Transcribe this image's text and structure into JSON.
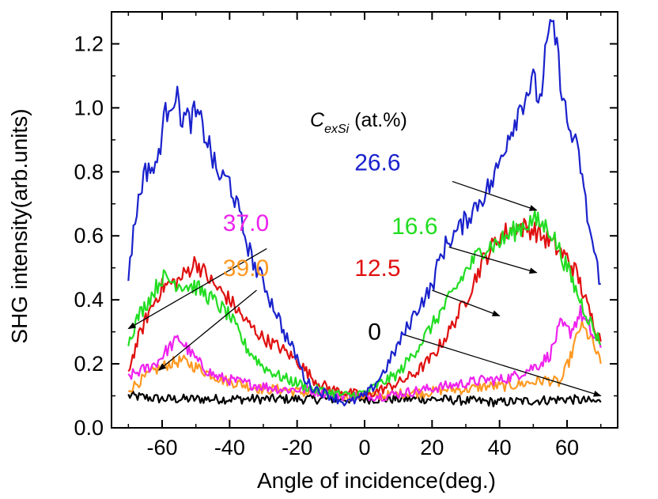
{
  "chart_data": {
    "type": "line",
    "title": "",
    "xlabel": "Angle of incidence(deg.)",
    "ylabel": "SHG intensity(arb.units)",
    "xlim": [
      -75,
      75
    ],
    "ylim": [
      0.0,
      1.3
    ],
    "xticks": [
      -60,
      -40,
      -20,
      0,
      20,
      40,
      60
    ],
    "yticks": [
      0.0,
      0.2,
      0.4,
      0.6,
      0.8,
      1.0,
      1.2
    ],
    "xtick_labels": [
      "-60",
      "-40",
      "-20",
      "0",
      "20",
      "40",
      "60"
    ],
    "ytick_labels": [
      "0.0",
      "0.2",
      "0.4",
      "0.6",
      "0.8",
      "1.0",
      "1.2"
    ],
    "grid": false,
    "legend_title": {
      "main": "C",
      "sub": "exSi",
      "suffix": " (at.%)"
    },
    "series": [
      {
        "name": "0",
        "color": "#000000",
        "x": [
          -70,
          -60,
          -40,
          -20,
          0,
          20,
          40,
          60,
          70
        ],
        "y": [
          0.1,
          0.09,
          0.09,
          0.09,
          0.09,
          0.09,
          0.08,
          0.09,
          0.08
        ]
      },
      {
        "name": "12.5",
        "color": "#e01010",
        "x": [
          -70,
          -67,
          -64,
          -60,
          -55,
          -50,
          -45,
          -40,
          -35,
          -30,
          -25,
          -20,
          -15,
          -10,
          -5,
          0,
          5,
          10,
          15,
          20,
          25,
          30,
          35,
          40,
          45,
          50,
          55,
          60,
          63,
          66,
          70
        ],
        "y": [
          0.18,
          0.28,
          0.36,
          0.44,
          0.46,
          0.52,
          0.45,
          0.4,
          0.33,
          0.28,
          0.25,
          0.21,
          0.15,
          0.12,
          0.11,
          0.1,
          0.12,
          0.14,
          0.17,
          0.22,
          0.3,
          0.4,
          0.52,
          0.6,
          0.63,
          0.62,
          0.58,
          0.53,
          0.48,
          0.38,
          0.27
        ]
      },
      {
        "name": "16.6",
        "color": "#22dd22",
        "x": [
          -70,
          -67,
          -64,
          -60,
          -55,
          -50,
          -45,
          -40,
          -35,
          -30,
          -25,
          -20,
          -15,
          -10,
          -5,
          0,
          5,
          10,
          15,
          20,
          25,
          30,
          35,
          40,
          45,
          50,
          55,
          60,
          63,
          66,
          70
        ],
        "y": [
          0.27,
          0.35,
          0.4,
          0.47,
          0.45,
          0.44,
          0.4,
          0.35,
          0.25,
          0.19,
          0.16,
          0.14,
          0.12,
          0.11,
          0.1,
          0.11,
          0.14,
          0.17,
          0.24,
          0.32,
          0.4,
          0.49,
          0.56,
          0.58,
          0.62,
          0.65,
          0.62,
          0.5,
          0.42,
          0.35,
          0.26
        ]
      },
      {
        "name": "26.6",
        "color": "#1a22cc",
        "x": [
          -70,
          -68,
          -66,
          -64,
          -62,
          -60,
          -58,
          -56,
          -54,
          -52,
          -50,
          -48,
          -46,
          -44,
          -42,
          -40,
          -38,
          -36,
          -34,
          -32,
          -30,
          -28,
          -26,
          -24,
          -22,
          -20,
          -18,
          -16,
          -14,
          -12,
          -10,
          -8,
          -6,
          -4,
          -2,
          0,
          2,
          4,
          6,
          8,
          10,
          12,
          14,
          16,
          18,
          20,
          22,
          24,
          26,
          28,
          30,
          32,
          34,
          36,
          38,
          40,
          42,
          44,
          46,
          48,
          50,
          52,
          54,
          56,
          58,
          60,
          62,
          64,
          66,
          68,
          70
        ],
        "y": [
          0.48,
          0.65,
          0.77,
          0.82,
          0.8,
          0.93,
          1.02,
          1.04,
          0.97,
          0.96,
          0.98,
          0.94,
          0.88,
          0.8,
          0.78,
          0.77,
          0.7,
          0.62,
          0.55,
          0.49,
          0.46,
          0.4,
          0.36,
          0.3,
          0.26,
          0.22,
          0.16,
          0.13,
          0.12,
          0.11,
          0.1,
          0.09,
          0.08,
          0.08,
          0.09,
          0.1,
          0.12,
          0.15,
          0.18,
          0.22,
          0.26,
          0.3,
          0.34,
          0.38,
          0.41,
          0.44,
          0.52,
          0.57,
          0.6,
          0.62,
          0.65,
          0.68,
          0.71,
          0.74,
          0.77,
          0.83,
          0.9,
          0.95,
          1.0,
          1.05,
          1.08,
          1.02,
          1.2,
          1.26,
          1.1,
          0.95,
          0.9,
          0.82,
          0.66,
          0.55,
          0.45
        ]
      },
      {
        "name": "37.0",
        "color": "#ee22ee",
        "x": [
          -70,
          -66,
          -62,
          -58,
          -55,
          -52,
          -48,
          -44,
          -40,
          -36,
          -30,
          -24,
          -18,
          -12,
          -6,
          0,
          6,
          12,
          18,
          24,
          30,
          36,
          40,
          44,
          48,
          52,
          55,
          58,
          61,
          64,
          67,
          70
        ],
        "y": [
          0.16,
          0.18,
          0.2,
          0.25,
          0.28,
          0.24,
          0.19,
          0.16,
          0.15,
          0.14,
          0.13,
          0.12,
          0.12,
          0.11,
          0.1,
          0.1,
          0.1,
          0.11,
          0.12,
          0.13,
          0.14,
          0.15,
          0.15,
          0.16,
          0.18,
          0.2,
          0.23,
          0.32,
          0.3,
          0.36,
          0.3,
          0.25
        ]
      },
      {
        "name": "39.0",
        "color": "#ff9922",
        "x": [
          -70,
          -66,
          -62,
          -58,
          -54,
          -50,
          -46,
          -42,
          -38,
          -34,
          -30,
          -24,
          -18,
          -12,
          -6,
          0,
          6,
          12,
          18,
          24,
          30,
          36,
          42,
          48,
          54,
          58,
          61,
          64,
          67,
          70
        ],
        "y": [
          0.12,
          0.15,
          0.18,
          0.2,
          0.21,
          0.19,
          0.17,
          0.15,
          0.14,
          0.13,
          0.12,
          0.12,
          0.11,
          0.11,
          0.1,
          0.1,
          0.1,
          0.11,
          0.11,
          0.12,
          0.12,
          0.13,
          0.13,
          0.14,
          0.15,
          0.14,
          0.22,
          0.32,
          0.28,
          0.2
        ]
      }
    ],
    "labels": [
      {
        "text": "26.6",
        "color": "#1a22cc",
        "x": -3,
        "y": 0.805,
        "arrow_from": [
          26,
          0.77
        ],
        "arrow_to": [
          51,
          0.68
        ]
      },
      {
        "text": "16.6",
        "color": "#22dd22",
        "x": 8,
        "y": 0.605,
        "arrow_from": [
          25,
          0.565
        ],
        "arrow_to": [
          51,
          0.485
        ]
      },
      {
        "text": "37.0",
        "color": "#ee22ee",
        "x": -42,
        "y": 0.615,
        "arrow_from": [
          -29,
          0.56
        ],
        "arrow_to": [
          -80,
          0.31
        ]
      },
      {
        "text": "39.0",
        "color": "#ff9922",
        "x": -42,
        "y": 0.475,
        "arrow_from": [
          -32,
          0.43
        ],
        "arrow_to": [
          -61,
          0.18
        ]
      },
      {
        "text": "12.5",
        "color": "#e01010",
        "x": -3,
        "y": 0.475,
        "arrow_from": [
          20,
          0.43
        ],
        "arrow_to": [
          40,
          0.35
        ]
      },
      {
        "text": "0",
        "color": "#000000",
        "x": 1,
        "y": 0.275,
        "arrow_from": [
          12,
          0.29
        ],
        "arrow_to": [
          70,
          0.1
        ]
      }
    ]
  }
}
